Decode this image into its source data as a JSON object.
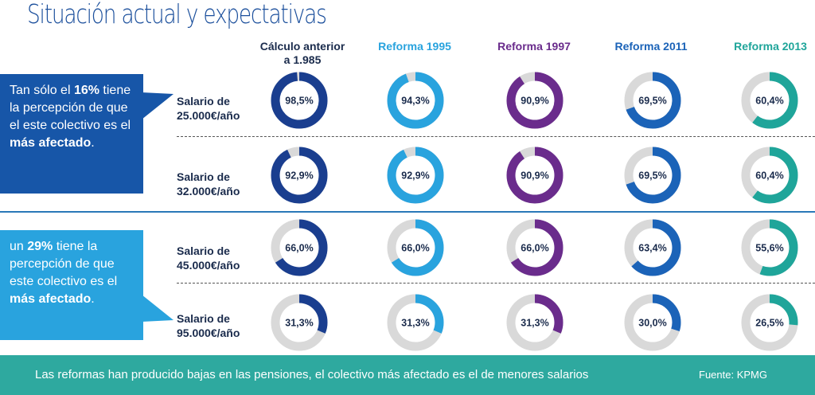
{
  "title": "Situación actual y expectativas",
  "callouts": [
    {
      "pre": "Tan sólo el ",
      "highlight": "16%",
      "mid": " tiene la percepción de que el este colectivo es el ",
      "bold_end": "más afectado",
      "post": "."
    },
    {
      "pre": "un ",
      "highlight": "29%",
      "mid": " tiene la percepción de que este colectivo es el ",
      "bold_end": "más afectado",
      "post": "."
    }
  ],
  "footer": {
    "text": "Las reformas han producido bajas en las pensiones, el colectivo más afectado es el de menores salarios",
    "source": "Fuente: KPMG"
  },
  "colors": {
    "track": "#d9d9d9",
    "footer": "#2ea99f",
    "callout1": "#1756a8",
    "callout2": "#29a3de"
  },
  "chart_data": {
    "type": "donut-grid",
    "categories": [
      "Cálculo anterior a 1.985",
      "Reforma 1995",
      "Reforma 1997",
      "Reforma 2011",
      "Reforma 2013"
    ],
    "category_colors": [
      "#1a3e8f",
      "#29a3de",
      "#6a2c8c",
      "#1b63b8",
      "#1fa59a"
    ],
    "series": [
      {
        "name": "Salario de 25.000€/año",
        "values": [
          98.5,
          94.3,
          90.9,
          69.5,
          60.4
        ],
        "labels": [
          "98,5%",
          "94,3%",
          "90,9%",
          "69,5%",
          "60,4%"
        ]
      },
      {
        "name": "Salario de 32.000€/año",
        "values": [
          92.9,
          92.9,
          90.9,
          69.5,
          60.4
        ],
        "labels": [
          "92,9%",
          "92,9%",
          "90,9%",
          "69,5%",
          "60,4%"
        ]
      },
      {
        "name": "Salario de 45.000€/año",
        "values": [
          66.0,
          66.0,
          66.0,
          63.4,
          55.6
        ],
        "labels": [
          "66,0%",
          "66,0%",
          "66,0%",
          "63,4%",
          "55,6%"
        ]
      },
      {
        "name": "Salario de 95.000€/año",
        "values": [
          31.3,
          31.3,
          31.3,
          30.0,
          26.5
        ],
        "labels": [
          "31,3%",
          "31,3%",
          "31,3%",
          "30,0%",
          "26,5%"
        ]
      }
    ],
    "row_labels": [
      [
        "Salario de",
        "25.000€/año"
      ],
      [
        "Salario de",
        "32.000€/año"
      ],
      [
        "Salario de",
        "45.000€/año"
      ],
      [
        "Salario de",
        "95.000€/año"
      ]
    ],
    "column_headers": [
      [
        "Cálculo anterior",
        "a 1.985"
      ],
      [
        "Reforma 1995"
      ],
      [
        "Reforma 1997"
      ],
      [
        "Reforma 2011"
      ],
      [
        "Reforma 2013"
      ]
    ]
  }
}
